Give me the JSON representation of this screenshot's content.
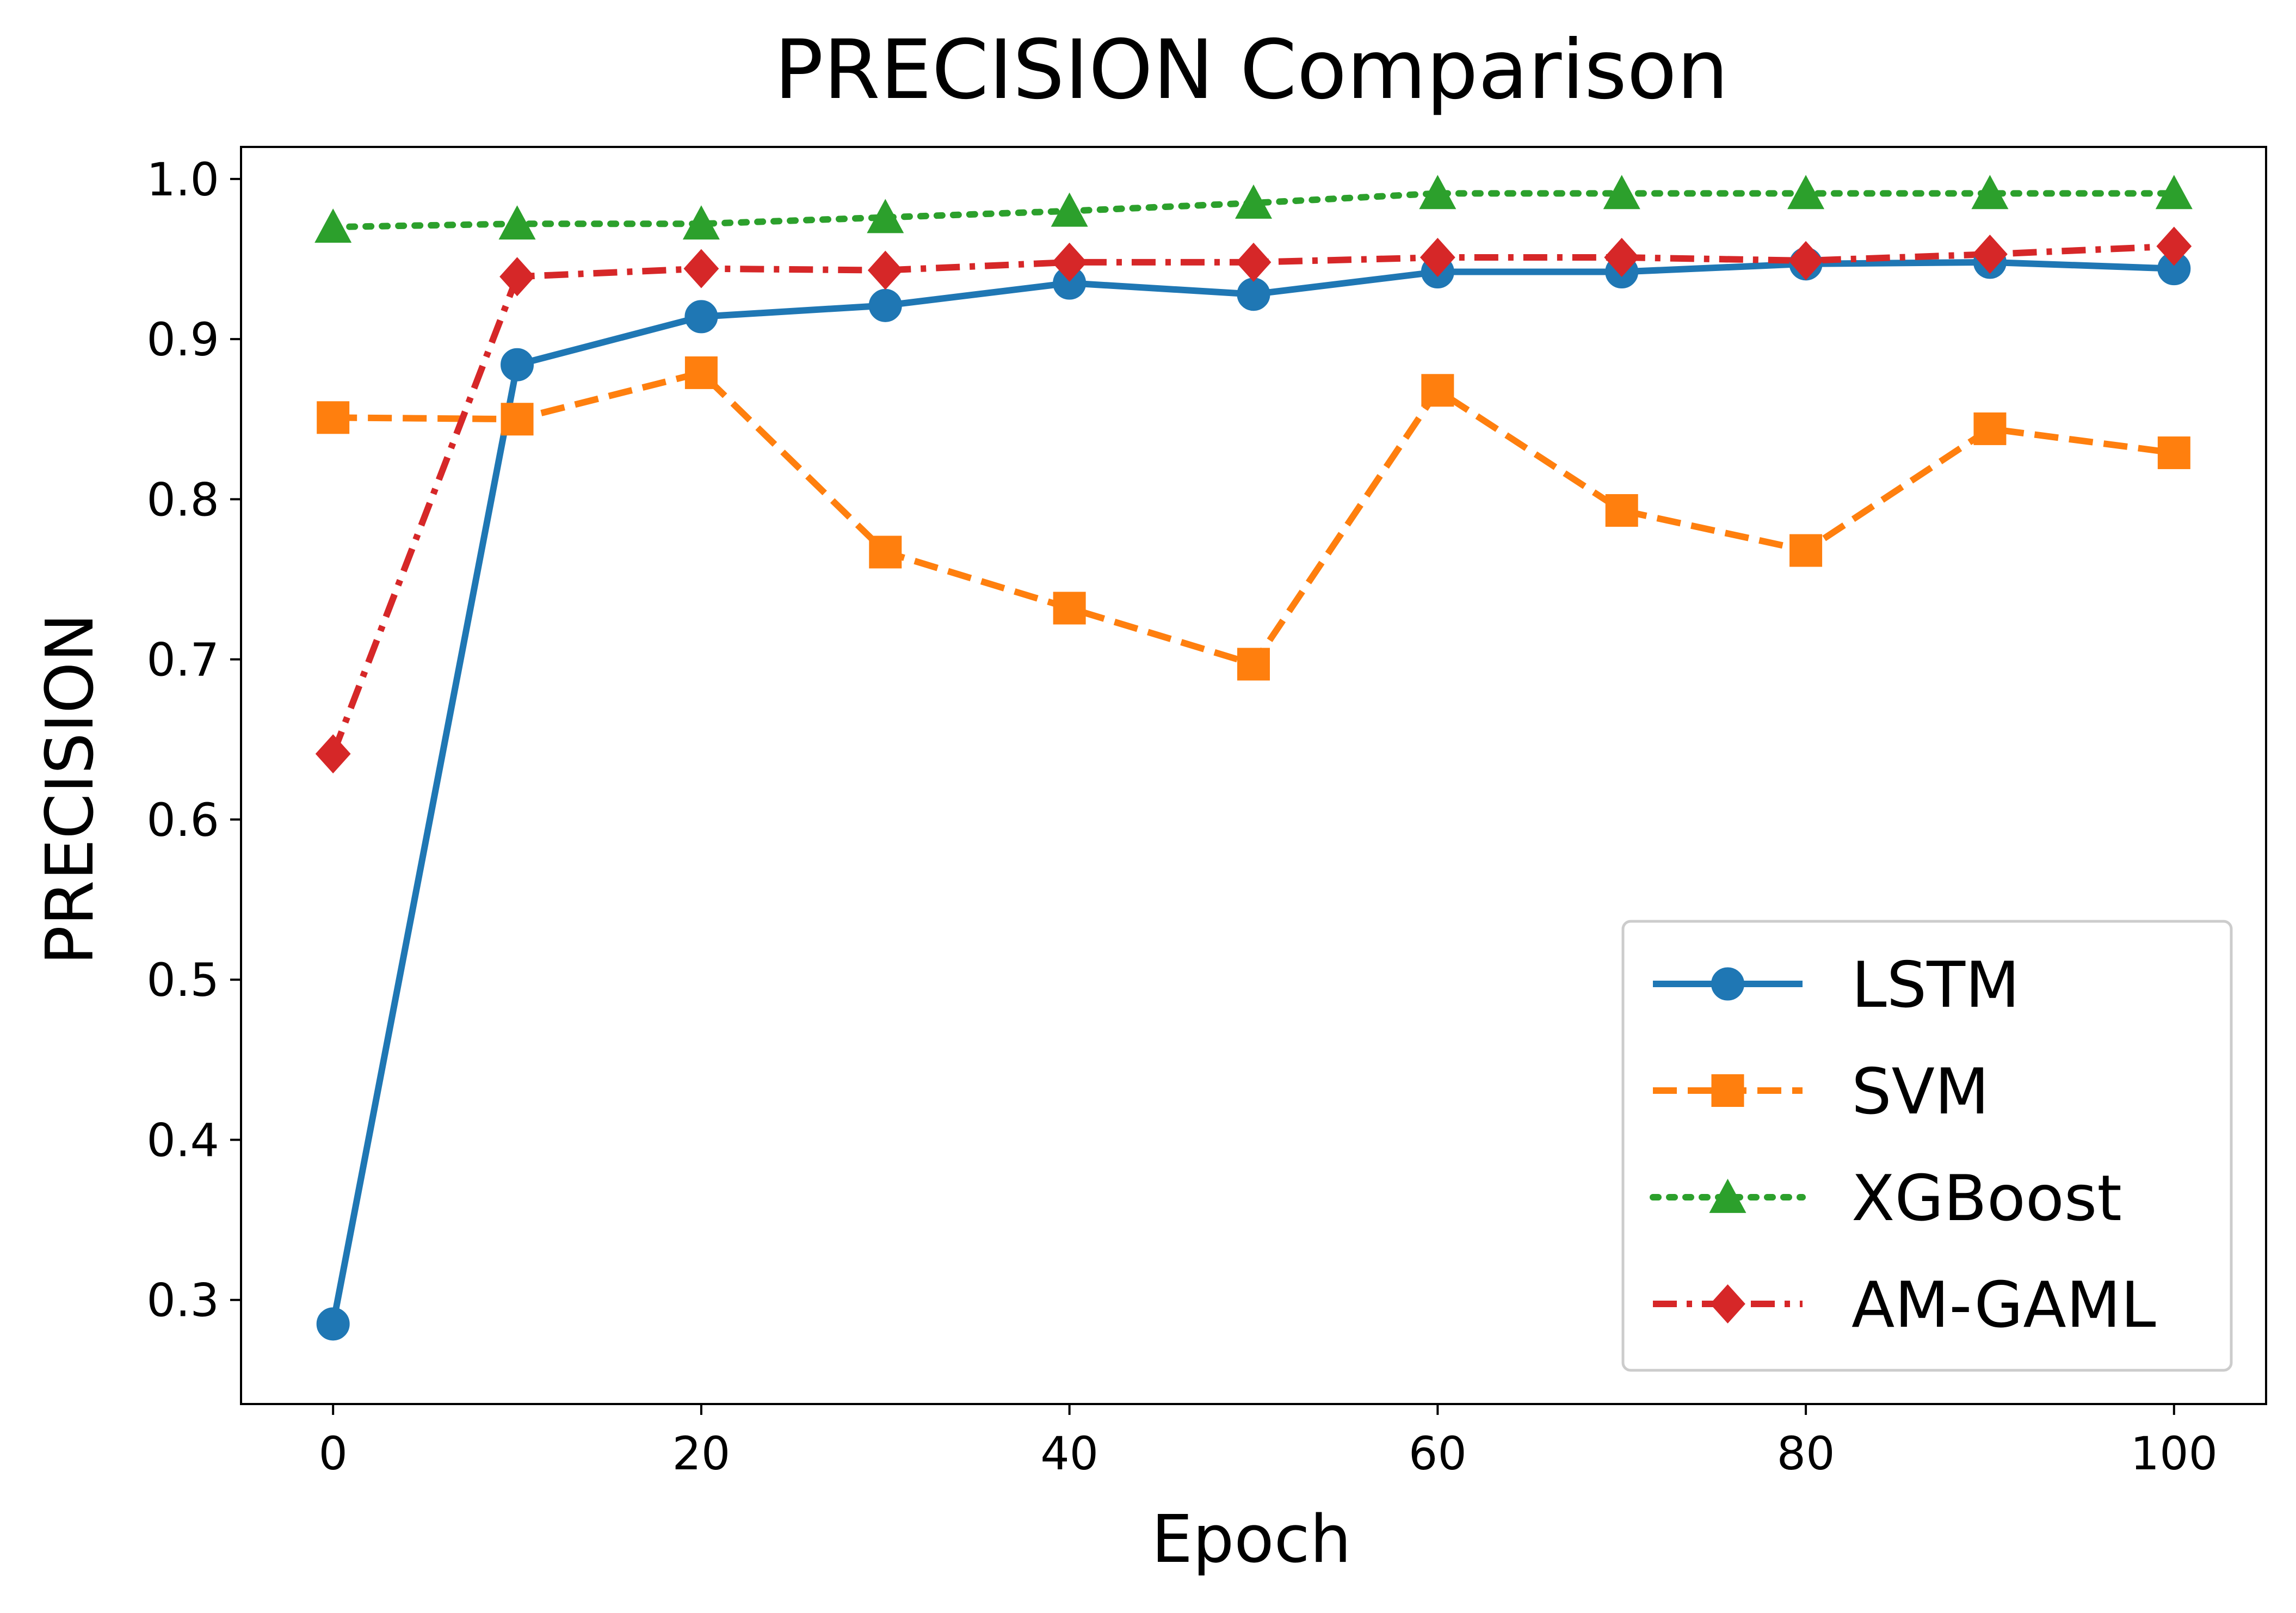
{
  "chart_data": {
    "type": "line",
    "title": "PRECISION Comparison",
    "xlabel": "Epoch",
    "ylabel": "PRECISION",
    "x": [
      0,
      10,
      20,
      30,
      40,
      50,
      60,
      70,
      80,
      90,
      100
    ],
    "xlim": [
      -5,
      105
    ],
    "ylim": [
      0.235,
      1.02
    ],
    "x_ticks": [
      "0",
      "20",
      "40",
      "60",
      "80",
      "100"
    ],
    "y_ticks": [
      "0.3",
      "0.4",
      "0.5",
      "0.6",
      "0.7",
      "0.8",
      "0.9",
      "1.0"
    ],
    "grid": false,
    "legend": {
      "position": "lower-right"
    },
    "series": [
      {
        "name": "LSTM",
        "color": "#1f77b4",
        "line_style": "solid",
        "marker": "circle",
        "values": [
          0.285,
          0.884,
          0.914,
          0.921,
          0.935,
          0.928,
          0.942,
          0.942,
          0.947,
          0.948,
          0.944
        ]
      },
      {
        "name": "SVM",
        "color": "#ff7f0e",
        "line_style": "dashed",
        "marker": "square",
        "values": [
          0.851,
          0.85,
          0.879,
          0.767,
          0.732,
          0.697,
          0.868,
          0.793,
          0.768,
          0.844,
          0.829
        ]
      },
      {
        "name": "XGBoost",
        "color": "#2ca02c",
        "line_style": "dotted",
        "marker": "triangle",
        "values": [
          0.97,
          0.972,
          0.972,
          0.976,
          0.98,
          0.985,
          0.991,
          0.991,
          0.991,
          0.991,
          0.991
        ]
      },
      {
        "name": "AM-GAML",
        "color": "#d62728",
        "line_style": "dashdot",
        "marker": "diamond",
        "values": [
          0.641,
          0.939,
          0.944,
          0.943,
          0.948,
          0.948,
          0.951,
          0.951,
          0.949,
          0.953,
          0.958
        ]
      }
    ]
  }
}
